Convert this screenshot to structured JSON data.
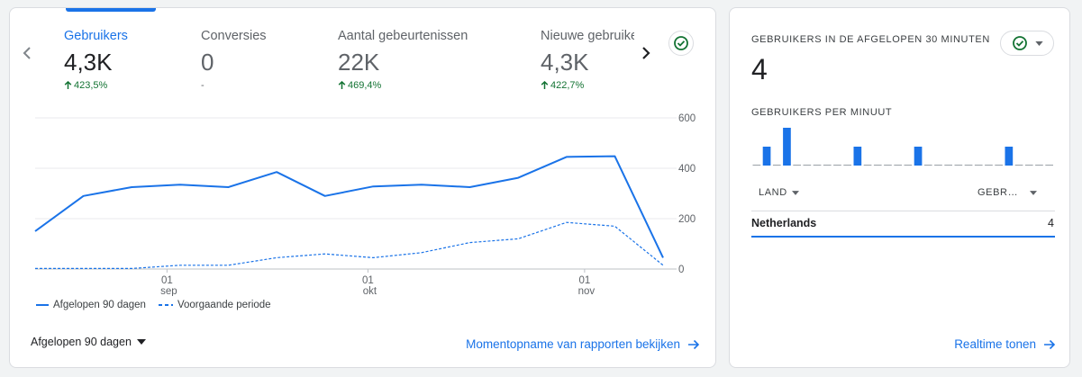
{
  "metrics": [
    {
      "label": "Gebruikers",
      "value": "4,3K",
      "delta": "423,5%"
    },
    {
      "label": "Conversies",
      "value": "0",
      "delta": "-"
    },
    {
      "label": "Aantal gebeurtenissen",
      "value": "22K",
      "delta": "469,4%"
    },
    {
      "label": "Nieuwe gebruikers",
      "value": "4,3K",
      "delta": "422,7%"
    }
  ],
  "chart_data": {
    "type": "line",
    "y_ticks": [
      "600",
      "400",
      "200",
      "0"
    ],
    "ylim": [
      0,
      600
    ],
    "x_ticks": [
      {
        "day": "01",
        "month": "sep"
      },
      {
        "day": "01",
        "month": "okt"
      },
      {
        "day": "01",
        "month": "nov"
      }
    ],
    "series": [
      {
        "name": "Afgelopen 90 dagen",
        "style": "solid",
        "color": "#1a73e8",
        "values": [
          150,
          290,
          325,
          335,
          325,
          385,
          290,
          328,
          335,
          325,
          362,
          445,
          448,
          45
        ]
      },
      {
        "name": "Voorgaande periode",
        "style": "dashed",
        "color": "#1a73e8",
        "values": [
          2,
          2,
          2,
          15,
          15,
          45,
          60,
          45,
          65,
          105,
          120,
          185,
          170,
          15
        ]
      }
    ]
  },
  "date_range": "Afgelopen 90 dagen",
  "snapshot_link": "Momentopname van rapporten bekijken",
  "realtime": {
    "title": "GEBRUIKERS IN DE AFGELOPEN 30 MINUTEN",
    "value": "4",
    "per_minute_label": "GEBRUIKERS PER MINUUT",
    "per_minute": [
      0,
      1,
      0,
      2,
      0,
      0,
      0,
      0,
      0,
      0,
      1,
      0,
      0,
      0,
      0,
      0,
      1,
      0,
      0,
      0,
      0,
      0,
      0,
      0,
      0,
      1,
      0,
      0,
      0,
      0
    ],
    "columns": {
      "country": "LAND",
      "users": "GEBR…"
    },
    "rows": [
      {
        "country": "Netherlands",
        "users": "4"
      }
    ],
    "link": "Realtime tonen"
  },
  "colors": {
    "accent": "#1a73e8",
    "positive": "#137333"
  }
}
